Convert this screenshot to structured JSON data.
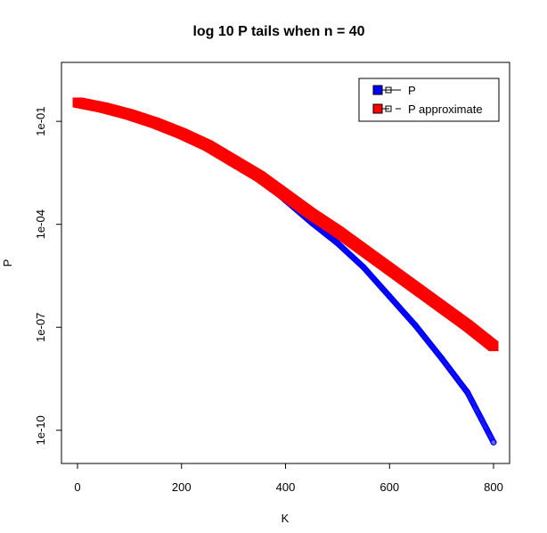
{
  "chart_data": {
    "type": "scatter",
    "title": "log 10 P tails when n = 40",
    "xlabel": "K",
    "ylabel": "P",
    "xlim": [
      0,
      800
    ],
    "ylim_log10": [
      -10.5,
      0.25
    ],
    "y_scale": "log",
    "x_ticks": [
      "0",
      "200",
      "400",
      "600",
      "800"
    ],
    "y_ticks": [
      "1e-01",
      "1e-04",
      "1e-07",
      "1e-10"
    ],
    "legend_position": "top-right",
    "series": [
      {
        "name": "P",
        "color": "#0000ff",
        "marker": "open-circle",
        "x": [
          0,
          50,
          100,
          150,
          200,
          250,
          300,
          350,
          400,
          450,
          500,
          550,
          600,
          650,
          700,
          750,
          800
        ],
        "y_log10": [
          -0.45,
          -0.6,
          -0.8,
          -1.05,
          -1.35,
          -1.7,
          -2.15,
          -2.65,
          -3.3,
          -3.95,
          -4.55,
          -5.25,
          -6.1,
          -6.95,
          -7.9,
          -8.9,
          -10.35
        ]
      },
      {
        "name": "P approximate",
        "color": "#ff0000",
        "marker": "filled-square",
        "x": [
          0,
          50,
          100,
          150,
          200,
          250,
          300,
          350,
          400,
          450,
          500,
          550,
          600,
          650,
          700,
          750,
          800
        ],
        "y_log10": [
          -0.45,
          -0.6,
          -0.8,
          -1.05,
          -1.35,
          -1.7,
          -2.15,
          -2.6,
          -3.15,
          -3.7,
          -4.2,
          -4.75,
          -5.3,
          -5.85,
          -6.4,
          -6.95,
          -7.55
        ]
      }
    ]
  }
}
